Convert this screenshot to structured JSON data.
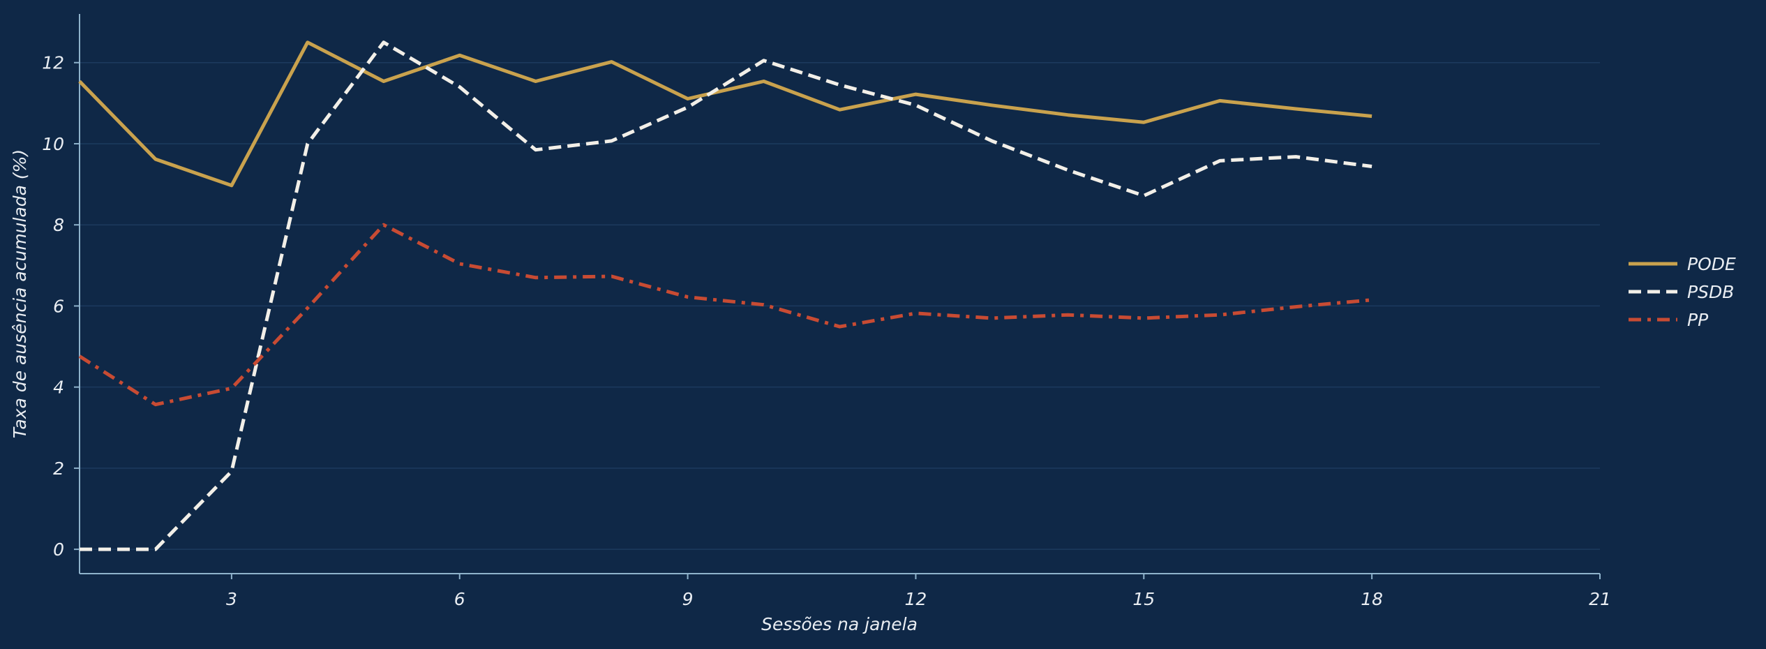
{
  "colors": {
    "background": "#0f2847",
    "grid": "#1c3a5e",
    "axis": "#8fb3cc",
    "text": "#e9edf2"
  },
  "chart_data": {
    "type": "line",
    "title": "",
    "xlabel": "Sessões na janela",
    "ylabel": "Taxa de ausência acumulada (%)",
    "xlim": [
      1,
      21
    ],
    "ylim": [
      -0.6,
      13.2
    ],
    "xticks": [
      3,
      6,
      9,
      12,
      15,
      18,
      21
    ],
    "yticks": [
      0,
      2,
      4,
      6,
      8,
      10,
      12
    ],
    "grid": "horizontal",
    "legend_position": "right",
    "x": [
      1,
      2,
      3,
      4,
      5,
      6,
      7,
      8,
      9,
      10,
      11,
      12,
      13,
      14,
      15,
      16,
      17,
      18
    ],
    "series": [
      {
        "name": "PODE",
        "color": "#c9a24e",
        "dash": "solid",
        "values": [
          11.54,
          9.62,
          8.97,
          12.5,
          11.54,
          12.18,
          11.54,
          12.02,
          11.11,
          11.54,
          10.84,
          11.22,
          10.95,
          10.71,
          10.53,
          11.06,
          10.86,
          10.68
        ]
      },
      {
        "name": "PSDB",
        "color": "#f2efe8",
        "dash": "dashed",
        "values": [
          0.0,
          0.0,
          1.92,
          10.0,
          12.5,
          11.4,
          9.85,
          10.07,
          10.9,
          12.05,
          11.45,
          10.95,
          10.07,
          9.35,
          8.72,
          9.58,
          9.68,
          9.44
        ]
      },
      {
        "name": "PP",
        "color": "#c84b33",
        "dash": "dashdot",
        "values": [
          4.76,
          3.57,
          3.97,
          5.95,
          8.0,
          7.04,
          6.7,
          6.73,
          6.22,
          6.03,
          5.49,
          5.82,
          5.7,
          5.78,
          5.7,
          5.78,
          5.98,
          6.15
        ]
      }
    ]
  }
}
